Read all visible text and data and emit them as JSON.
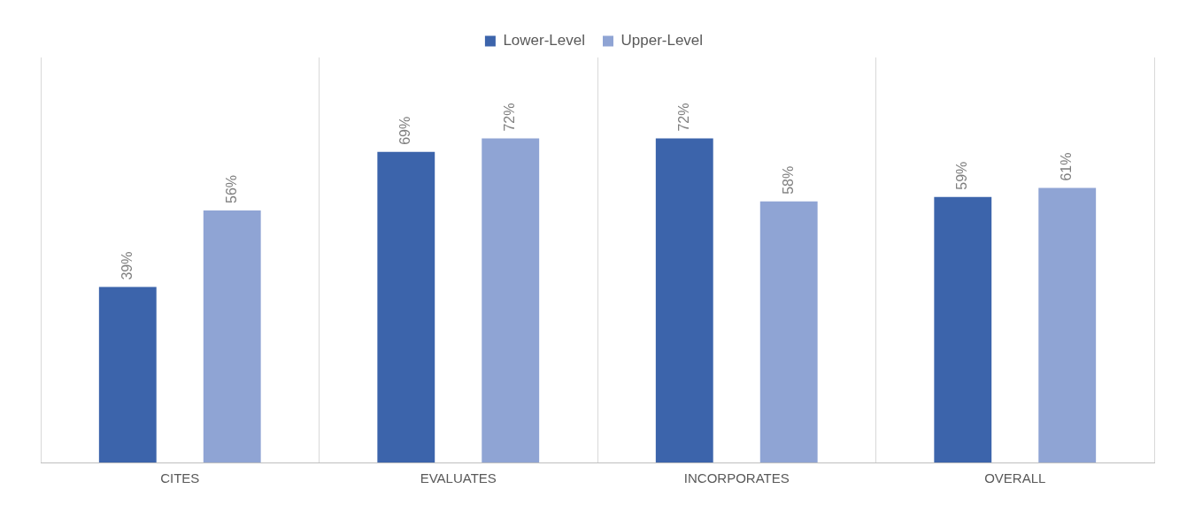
{
  "chart_data": {
    "type": "bar",
    "categories": [
      "CITES",
      "EVALUATES",
      "INCORPORATES",
      "OVERALL"
    ],
    "series": [
      {
        "name": "Lower-Level",
        "color": "#3c64ab",
        "values": [
          39,
          69,
          72,
          59
        ],
        "value_labels": [
          "39%",
          "69%",
          "72%",
          "59%"
        ]
      },
      {
        "name": "Upper-Level",
        "color": "#8fa4d4",
        "values": [
          56,
          72,
          58,
          61
        ],
        "value_labels": [
          "56%",
          "72%",
          "58%",
          "61%"
        ]
      }
    ],
    "tick_labels": "x",
    "grid": "x",
    "legend": "top"
  }
}
